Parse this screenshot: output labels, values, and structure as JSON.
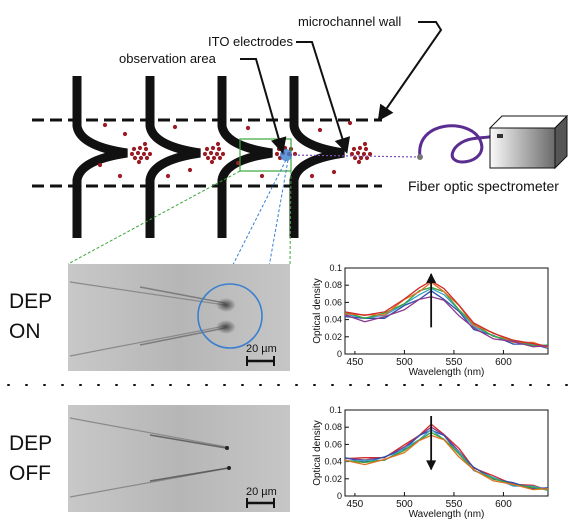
{
  "labels": {
    "microchannel_wall": "microchannel wall",
    "ito_electrodes": "ITO electrodes",
    "observation_area": "observation area",
    "spectrometer": "Fiber optic spectrometer"
  },
  "panels": {
    "top": {
      "state_line1": "DEP",
      "state_line2": "ON",
      "scale_bar": "20 µm"
    },
    "bottom": {
      "state_line1": "DEP",
      "state_line2": "OFF",
      "scale_bar": "20 µm"
    }
  },
  "colors": {
    "particles": "#9b1b24",
    "fiber": "#5a2d91",
    "observation_circle": "#3a7fd0",
    "highlight_box": "#3aa63a"
  },
  "chart_data": [
    {
      "type": "line",
      "title": "",
      "xlabel": "Wavelength (nm)",
      "ylabel": "Optical density",
      "xlim": [
        440,
        645
      ],
      "ylim": [
        0,
        0.1
      ],
      "x_ticks": [
        "500",
        "550",
        "600"
      ],
      "x_minor_ticks": [
        "450"
      ],
      "y_ticks": [
        "0",
        "0.02",
        "0.04",
        "0.06",
        "0.08",
        "0.1"
      ],
      "arrow": "up",
      "x": [
        440,
        460,
        480,
        500,
        515,
        527,
        540,
        555,
        570,
        590,
        610,
        630,
        645
      ],
      "series": [
        {
          "color": "#2f4fa8",
          "values": [
            0.045,
            0.04,
            0.043,
            0.055,
            0.065,
            0.072,
            0.065,
            0.048,
            0.03,
            0.02,
            0.013,
            0.01,
            0.008
          ]
        },
        {
          "color": "#3aa1c9",
          "values": [
            0.046,
            0.042,
            0.045,
            0.058,
            0.069,
            0.076,
            0.069,
            0.051,
            0.032,
            0.021,
            0.014,
            0.011,
            0.008
          ]
        },
        {
          "color": "#3aa63a",
          "values": [
            0.047,
            0.043,
            0.046,
            0.06,
            0.072,
            0.079,
            0.071,
            0.053,
            0.033,
            0.022,
            0.014,
            0.011,
            0.009
          ]
        },
        {
          "color": "#e07020",
          "values": [
            0.048,
            0.044,
            0.047,
            0.062,
            0.074,
            0.082,
            0.074,
            0.055,
            0.035,
            0.023,
            0.015,
            0.012,
            0.009
          ]
        },
        {
          "color": "#d02a2a",
          "values": [
            0.049,
            0.045,
            0.049,
            0.064,
            0.077,
            0.085,
            0.076,
            0.057,
            0.036,
            0.024,
            0.016,
            0.012,
            0.009
          ]
        },
        {
          "color": "#8e3a8e",
          "values": [
            0.044,
            0.039,
            0.042,
            0.053,
            0.062,
            0.068,
            0.061,
            0.046,
            0.029,
            0.019,
            0.013,
            0.01,
            0.008
          ]
        }
      ]
    },
    {
      "type": "line",
      "title": "",
      "xlabel": "Wavelength (nm)",
      "ylabel": "Optical density",
      "xlim": [
        440,
        645
      ],
      "ylim": [
        0,
        0.1
      ],
      "x_ticks": [
        "500",
        "550",
        "600"
      ],
      "x_minor_ticks": [
        "450"
      ],
      "y_ticks": [
        "0",
        "0.02",
        "0.04",
        "0.06",
        "0.08",
        "0.1"
      ],
      "arrow": "down",
      "x": [
        440,
        460,
        480,
        500,
        515,
        527,
        540,
        555,
        570,
        590,
        610,
        630,
        645
      ],
      "series": [
        {
          "color": "#d02a2a",
          "values": [
            0.045,
            0.043,
            0.046,
            0.058,
            0.072,
            0.082,
            0.073,
            0.054,
            0.034,
            0.022,
            0.015,
            0.011,
            0.008
          ]
        },
        {
          "color": "#8e3a8e",
          "values": [
            0.044,
            0.042,
            0.045,
            0.057,
            0.07,
            0.08,
            0.071,
            0.052,
            0.033,
            0.021,
            0.014,
            0.011,
            0.008
          ]
        },
        {
          "color": "#2f4fa8",
          "values": [
            0.043,
            0.041,
            0.044,
            0.056,
            0.069,
            0.078,
            0.069,
            0.051,
            0.032,
            0.021,
            0.014,
            0.01,
            0.008
          ]
        },
        {
          "color": "#3aa1c9",
          "values": [
            0.042,
            0.04,
            0.043,
            0.054,
            0.067,
            0.076,
            0.067,
            0.05,
            0.031,
            0.02,
            0.013,
            0.01,
            0.008
          ]
        },
        {
          "color": "#3aa63a",
          "values": [
            0.041,
            0.039,
            0.042,
            0.053,
            0.065,
            0.074,
            0.066,
            0.049,
            0.03,
            0.02,
            0.013,
            0.01,
            0.007
          ]
        },
        {
          "color": "#e07020",
          "values": [
            0.04,
            0.038,
            0.041,
            0.052,
            0.063,
            0.072,
            0.064,
            0.047,
            0.029,
            0.019,
            0.012,
            0.009,
            0.007
          ]
        }
      ]
    }
  ]
}
